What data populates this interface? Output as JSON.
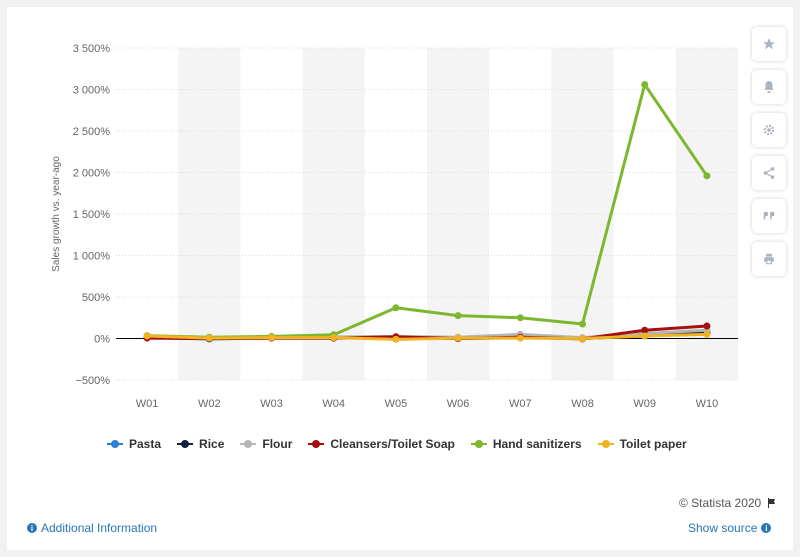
{
  "chart_data": {
    "type": "line",
    "ylabel": "Sales growth vs. year-ago",
    "xlabel": "",
    "categories": [
      "W01",
      "W02",
      "W03",
      "W04",
      "W05",
      "W06",
      "W07",
      "W08",
      "W09",
      "W10"
    ],
    "ylim": [
      -500,
      3500
    ],
    "yticks": [
      -500,
      0,
      500,
      1000,
      1500,
      2000,
      2500,
      3000,
      3500
    ],
    "ytick_labels": [
      "−500%",
      "0%",
      "500%",
      "1 000%",
      "1 500%",
      "2 000%",
      "2 500%",
      "3 000%",
      "3 500%"
    ],
    "grid": true,
    "legend_position": "bottom",
    "series": [
      {
        "name": "Pasta",
        "color": "#2f7ed8",
        "values": [
          20,
          5,
          10,
          15,
          15,
          10,
          20,
          5,
          40,
          80
        ]
      },
      {
        "name": "Rice",
        "color": "#0d233a",
        "values": [
          10,
          -5,
          5,
          5,
          10,
          0,
          10,
          0,
          30,
          70
        ]
      },
      {
        "name": "Flour",
        "color": "#b5b5b5",
        "values": [
          15,
          10,
          15,
          20,
          25,
          15,
          50,
          10,
          60,
          100
        ]
      },
      {
        "name": "Cleansers/Toilet Soap",
        "color": "#a50f0f",
        "values": [
          5,
          0,
          5,
          5,
          20,
          0,
          15,
          -5,
          100,
          150
        ]
      },
      {
        "name": "Hand sanitizers",
        "color": "#7cb82f",
        "values": [
          35,
          15,
          25,
          45,
          370,
          275,
          250,
          175,
          3060,
          1960
        ]
      },
      {
        "name": "Toilet paper",
        "color": "#f0b323",
        "values": [
          30,
          5,
          10,
          10,
          -10,
          5,
          5,
          0,
          30,
          50
        ]
      }
    ]
  },
  "sidebar_icons": [
    "star-icon",
    "bell-icon",
    "gear-icon",
    "share-icon",
    "quote-icon",
    "print-icon"
  ],
  "footer": {
    "credit": "© Statista 2020",
    "additional_info": "Additional Information",
    "show_source": "Show source"
  }
}
